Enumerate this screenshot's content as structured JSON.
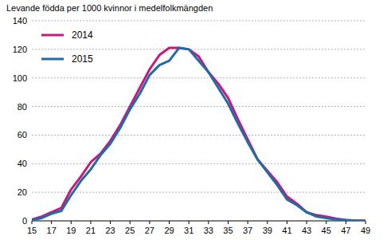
{
  "chart_data": {
    "type": "line",
    "title": "Levande födda per 1000 kvinnor i medelfolkmängden",
    "x": [
      15,
      16,
      17,
      18,
      19,
      20,
      21,
      22,
      23,
      24,
      25,
      26,
      27,
      28,
      29,
      30,
      31,
      32,
      33,
      34,
      35,
      36,
      37,
      38,
      39,
      40,
      41,
      42,
      43,
      44,
      45,
      46,
      47,
      48,
      49
    ],
    "series": [
      {
        "name": "2014",
        "color": "#c8197b",
        "values": [
          1,
          3,
          6,
          9,
          22,
          31,
          41,
          47,
          56,
          67,
          80,
          93,
          106,
          116,
          121,
          121,
          120,
          115,
          104,
          96,
          86,
          71,
          57,
          43,
          35,
          27,
          17,
          12,
          6,
          4,
          3,
          1.5,
          0.5,
          0.2,
          0.1
        ]
      },
      {
        "name": "2015",
        "color": "#1f6ca8",
        "values": [
          0.5,
          2,
          5,
          7,
          18,
          28,
          36,
          46,
          54,
          65,
          78,
          89,
          102,
          109,
          112,
          121,
          120,
          112,
          104,
          93,
          82,
          68,
          55,
          43,
          34,
          25,
          15,
          11,
          6,
          3,
          2,
          1,
          0.5,
          0.2,
          0.1
        ]
      }
    ],
    "xlim": [
      15,
      49
    ],
    "xticks": [
      15,
      17,
      19,
      21,
      23,
      25,
      27,
      29,
      31,
      33,
      35,
      37,
      39,
      41,
      43,
      45,
      47,
      49
    ],
    "ylim": [
      0,
      140
    ],
    "yticks": [
      0,
      20,
      40,
      60,
      80,
      100,
      120,
      140
    ],
    "grid": true,
    "legend": "top-left"
  }
}
